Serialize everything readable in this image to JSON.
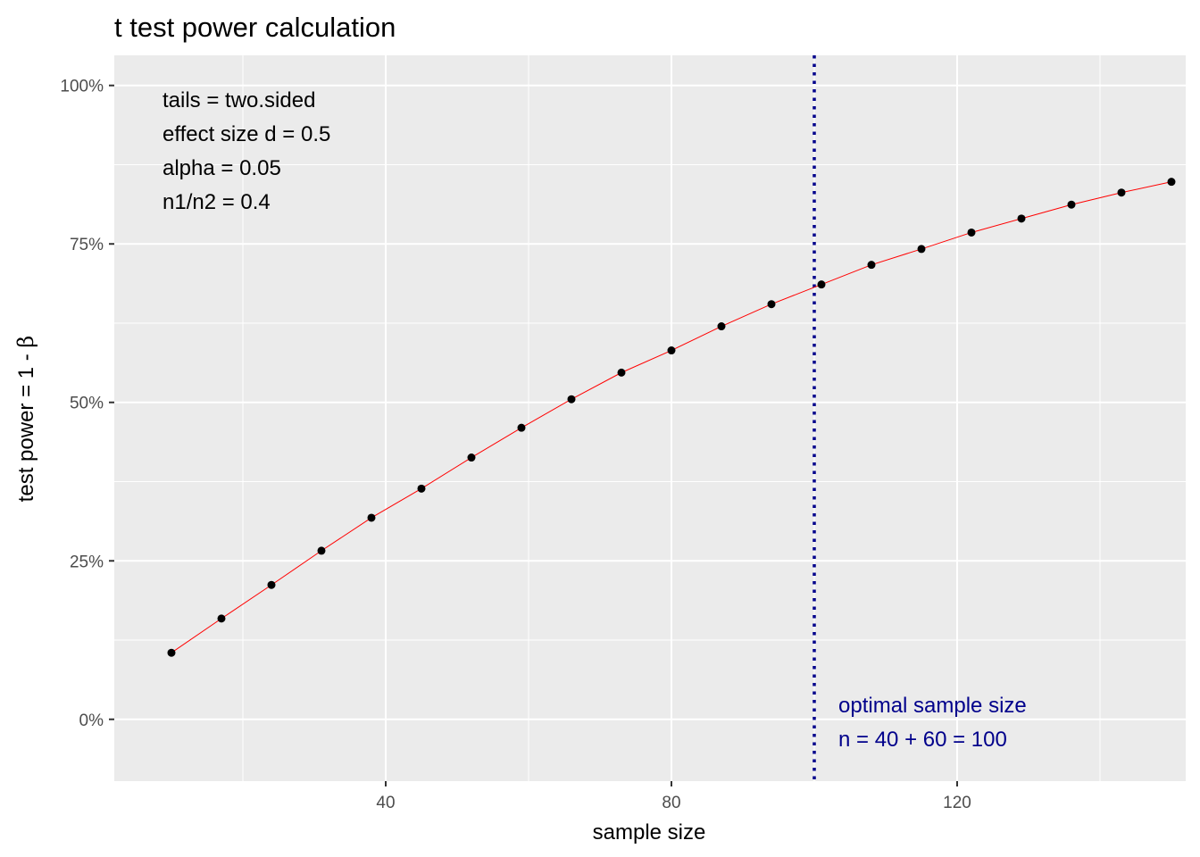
{
  "chart_data": {
    "type": "line",
    "title": "t test power calculation",
    "xlabel": "sample size",
    "ylabel_main": "test power = 1 - ",
    "ylabel_symbol": "β",
    "xlim": [
      2,
      152
    ],
    "ylim": [
      -0.0975,
      1.0475
    ],
    "x_ticks": [
      40,
      80,
      120
    ],
    "x_tick_labels": [
      "40",
      "80",
      "120"
    ],
    "x_minor_ticks": [
      20,
      60,
      100,
      140
    ],
    "y_ticks": [
      0,
      0.25,
      0.5,
      0.75,
      1.0
    ],
    "y_tick_labels": [
      "0%",
      "25%",
      "50%",
      "75%",
      "100%"
    ],
    "y_minor_ticks": [
      0.125,
      0.375,
      0.625,
      0.875
    ],
    "grid": true,
    "series": [
      {
        "x": [
          10,
          17,
          24,
          31,
          38,
          45,
          52,
          59,
          66,
          73,
          80,
          87,
          94,
          101,
          108,
          115,
          122,
          129,
          136,
          143,
          150
        ],
        "y": [
          0.105,
          0.159,
          0.212,
          0.266,
          0.318,
          0.364,
          0.413,
          0.46,
          0.505,
          0.547,
          0.582,
          0.62,
          0.655,
          0.686,
          0.717,
          0.742,
          0.768,
          0.79,
          0.812,
          0.831,
          0.848
        ],
        "line_color": "#FF0000",
        "point_color": "#000000"
      }
    ],
    "vline": {
      "x": 100,
      "color": "#00008B",
      "style": "dotted"
    },
    "annotations_top_left": [
      "tails = two.sided",
      "effect size d = 0.5",
      "alpha = 0.05",
      "n1/n2 =  0.4"
    ],
    "annotations_bottom_right": [
      "optimal sample size",
      "n = 40 + 60 = 100"
    ],
    "colors": {
      "panel_bg": "#EBEBEB",
      "grid": "#FFFFFF",
      "line": "#FF0000",
      "points": "#000000",
      "vline": "#00008B",
      "annotation_blue": "#00008B"
    }
  }
}
